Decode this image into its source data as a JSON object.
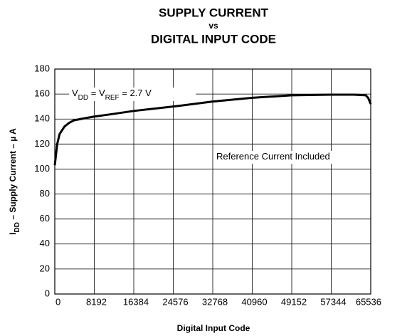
{
  "chart_data": {
    "type": "line",
    "title": [
      "SUPPLY CURRENT",
      "vs",
      "DIGITAL INPUT CODE"
    ],
    "x_label": "Digital Input Code",
    "y_label": [
      "I",
      "DD",
      " – Supply Current – µ A"
    ],
    "annotations": [
      {
        "parts": [
          "V",
          "DD",
          " = V",
          "REF",
          " = 2.7 V"
        ]
      },
      {
        "parts": [
          "Reference Current Included"
        ]
      }
    ],
    "x": [
      0,
      500,
      1000,
      2000,
      3000,
      4000,
      6000,
      8192,
      12000,
      16384,
      24576,
      32768,
      40960,
      49152,
      57344,
      62000,
      64500,
      65000,
      65536
    ],
    "series": [
      {
        "name": "Supply Current",
        "color": "#000000",
        "values": [
          103,
          120,
          128,
          134,
          137,
          139,
          140.5,
          142,
          144,
          146.5,
          150,
          154,
          157,
          159,
          159.5,
          159.5,
          159,
          157,
          152
        ]
      }
    ],
    "xlim": [
      0,
      65536
    ],
    "xticks": [
      0,
      8192,
      16384,
      24576,
      32768,
      40960,
      49152,
      57344,
      65536
    ],
    "ylim": [
      0,
      180
    ],
    "yticks": [
      0,
      20,
      40,
      60,
      80,
      100,
      120,
      140,
      160,
      180
    ],
    "grid": true
  }
}
